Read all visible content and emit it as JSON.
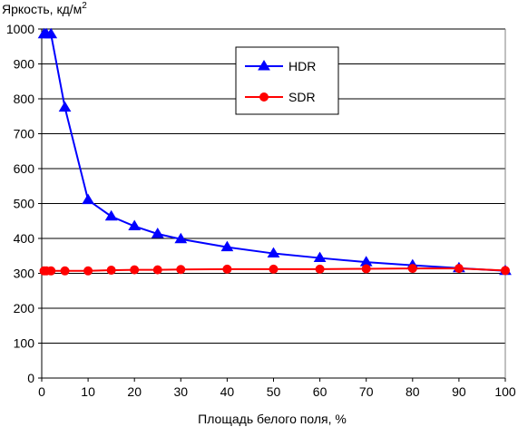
{
  "chart_data": {
    "type": "line",
    "title": "",
    "ylabel": "Яркость, кд/м",
    "ylabel_sup": "2",
    "xlabel": "Площадь белого поля, %",
    "xlim": [
      0,
      100
    ],
    "ylim": [
      0,
      1000
    ],
    "x_ticks": [
      0,
      10,
      20,
      30,
      40,
      50,
      60,
      70,
      80,
      90,
      100
    ],
    "y_ticks": [
      0,
      100,
      200,
      300,
      400,
      500,
      600,
      700,
      800,
      900,
      1000
    ],
    "grid": "horizontal",
    "legend_position": "top-center",
    "series": [
      {
        "name": "HDR",
        "color": "#0000ff",
        "marker": "triangle",
        "x": [
          0.5,
          1,
          2,
          5,
          10,
          15,
          20,
          25,
          30,
          40,
          50,
          60,
          70,
          80,
          90,
          100
        ],
        "y": [
          985,
          985,
          985,
          775,
          510,
          463,
          435,
          413,
          398,
          375,
          357,
          344,
          332,
          323,
          315,
          307
        ]
      },
      {
        "name": "SDR",
        "color": "#ff0000",
        "marker": "circle",
        "x": [
          0.5,
          1,
          2,
          5,
          10,
          15,
          20,
          25,
          30,
          40,
          50,
          60,
          70,
          80,
          90,
          100
        ],
        "y": [
          307,
          307,
          307,
          307,
          307,
          309,
          310,
          310,
          311,
          312,
          312,
          312,
          313,
          314,
          314,
          308
        ]
      }
    ]
  }
}
